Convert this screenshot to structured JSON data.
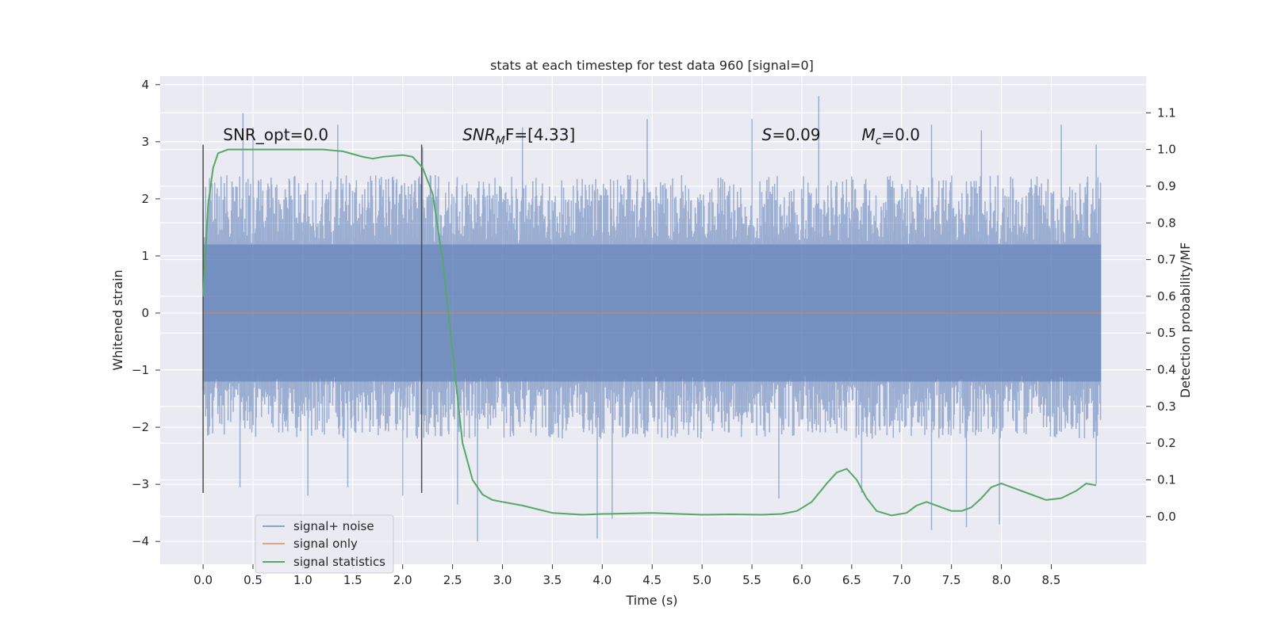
{
  "chart_data": {
    "type": "line",
    "title": "stats at each timestep for test data 960 [signal=0]",
    "xlabel": "Time (s)",
    "ylabel_left": "Whitened strain",
    "ylabel_right": "Detection probability/MF",
    "xlim": [
      -0.43,
      9.45
    ],
    "ylim_left": [
      -4.4,
      4.15
    ],
    "ylim_right": [
      -0.13,
      1.2
    ],
    "x_ticks": [
      "0.0",
      "0.5",
      "1.0",
      "1.5",
      "2.0",
      "2.5",
      "3.0",
      "3.5",
      "4.0",
      "4.5",
      "5.0",
      "5.5",
      "6.0",
      "6.5",
      "7.0",
      "7.5",
      "8.0",
      "8.5"
    ],
    "y_ticks_left": [
      "4",
      "3",
      "2",
      "1",
      "0",
      "−1",
      "−2",
      "−3",
      "−4"
    ],
    "y_ticks_right": [
      "1.1",
      "1.0",
      "0.9",
      "0.8",
      "0.7",
      "0.6",
      "0.5",
      "0.4",
      "0.3",
      "0.2",
      "0.1",
      "0.0"
    ],
    "grid": true,
    "legend_position": "bottom-left",
    "vertical_markers": [
      0.0,
      2.19
    ],
    "annotations": [
      {
        "text": "SNR_opt=0.0",
        "x": 0.2
      },
      {
        "prefix": "SNR",
        "sub": "M",
        "suffix": "F=[4.33]",
        "x": 2.6
      },
      {
        "prefix": "S",
        "sub": "",
        "suffix": "=0.09",
        "x": 5.6
      },
      {
        "prefix": "M",
        "sub": "c",
        "suffix": "=0.0",
        "x": 6.6
      }
    ],
    "series": [
      {
        "name": "signal+ noise",
        "color": "#4c72b0",
        "x_range": [
          0.0,
          9.0
        ],
        "typical_envelope": [
          -2.0,
          2.2
        ],
        "peaks_high": [
          [
            0.4,
            3.5
          ],
          [
            0.5,
            3.25
          ],
          [
            1.35,
            3.3
          ],
          [
            2.2,
            2.9
          ],
          [
            3.2,
            3.25
          ],
          [
            4.45,
            3.4
          ],
          [
            5.5,
            3.4
          ],
          [
            6.17,
            3.8
          ],
          [
            7.3,
            3.3
          ],
          [
            7.8,
            3.2
          ],
          [
            8.6,
            3.3
          ],
          [
            8.95,
            2.95
          ]
        ],
        "peaks_low": [
          [
            0.37,
            -3.05
          ],
          [
            1.05,
            -3.2
          ],
          [
            1.45,
            -3.05
          ],
          [
            2.0,
            -3.2
          ],
          [
            2.55,
            -3.35
          ],
          [
            2.75,
            -4.0
          ],
          [
            3.95,
            -3.95
          ],
          [
            4.1,
            -3.6
          ],
          [
            5.77,
            -3.25
          ],
          [
            6.6,
            -3.15
          ],
          [
            7.3,
            -3.8
          ],
          [
            7.65,
            -3.75
          ],
          [
            7.98,
            -3.7
          ],
          [
            8.95,
            -3.0
          ]
        ]
      },
      {
        "name": "signal only",
        "color": "#dd8452",
        "x": [
          0.0,
          9.0
        ],
        "y": [
          0.0,
          0.0
        ]
      },
      {
        "name": "signal statistics",
        "color": "#55a868",
        "axis": "right",
        "x": [
          0.0,
          0.05,
          0.1,
          0.15,
          0.25,
          0.4,
          0.6,
          0.9,
          1.2,
          1.4,
          1.6,
          1.7,
          1.8,
          2.0,
          2.1,
          2.2,
          2.3,
          2.4,
          2.5,
          2.6,
          2.7,
          2.8,
          2.9,
          3.0,
          3.2,
          3.5,
          3.8,
          4.0,
          4.5,
          5.0,
          5.3,
          5.6,
          5.8,
          5.95,
          6.1,
          6.25,
          6.35,
          6.45,
          6.55,
          6.65,
          6.75,
          6.9,
          7.05,
          7.15,
          7.25,
          7.35,
          7.5,
          7.6,
          7.7,
          7.8,
          7.9,
          8.0,
          8.15,
          8.3,
          8.45,
          8.6,
          8.75,
          8.85,
          8.95
        ],
        "y": [
          0.6,
          0.85,
          0.95,
          0.99,
          1.0,
          1.0,
          1.0,
          1.0,
          1.0,
          0.995,
          0.98,
          0.975,
          0.98,
          0.985,
          0.98,
          0.95,
          0.88,
          0.7,
          0.45,
          0.2,
          0.1,
          0.06,
          0.045,
          0.04,
          0.03,
          0.01,
          0.005,
          0.007,
          0.01,
          0.005,
          0.006,
          0.005,
          0.007,
          0.015,
          0.04,
          0.09,
          0.12,
          0.13,
          0.1,
          0.05,
          0.015,
          0.003,
          0.01,
          0.03,
          0.04,
          0.03,
          0.015,
          0.015,
          0.025,
          0.05,
          0.08,
          0.09,
          0.075,
          0.06,
          0.045,
          0.05,
          0.07,
          0.09,
          0.085
        ]
      }
    ]
  }
}
